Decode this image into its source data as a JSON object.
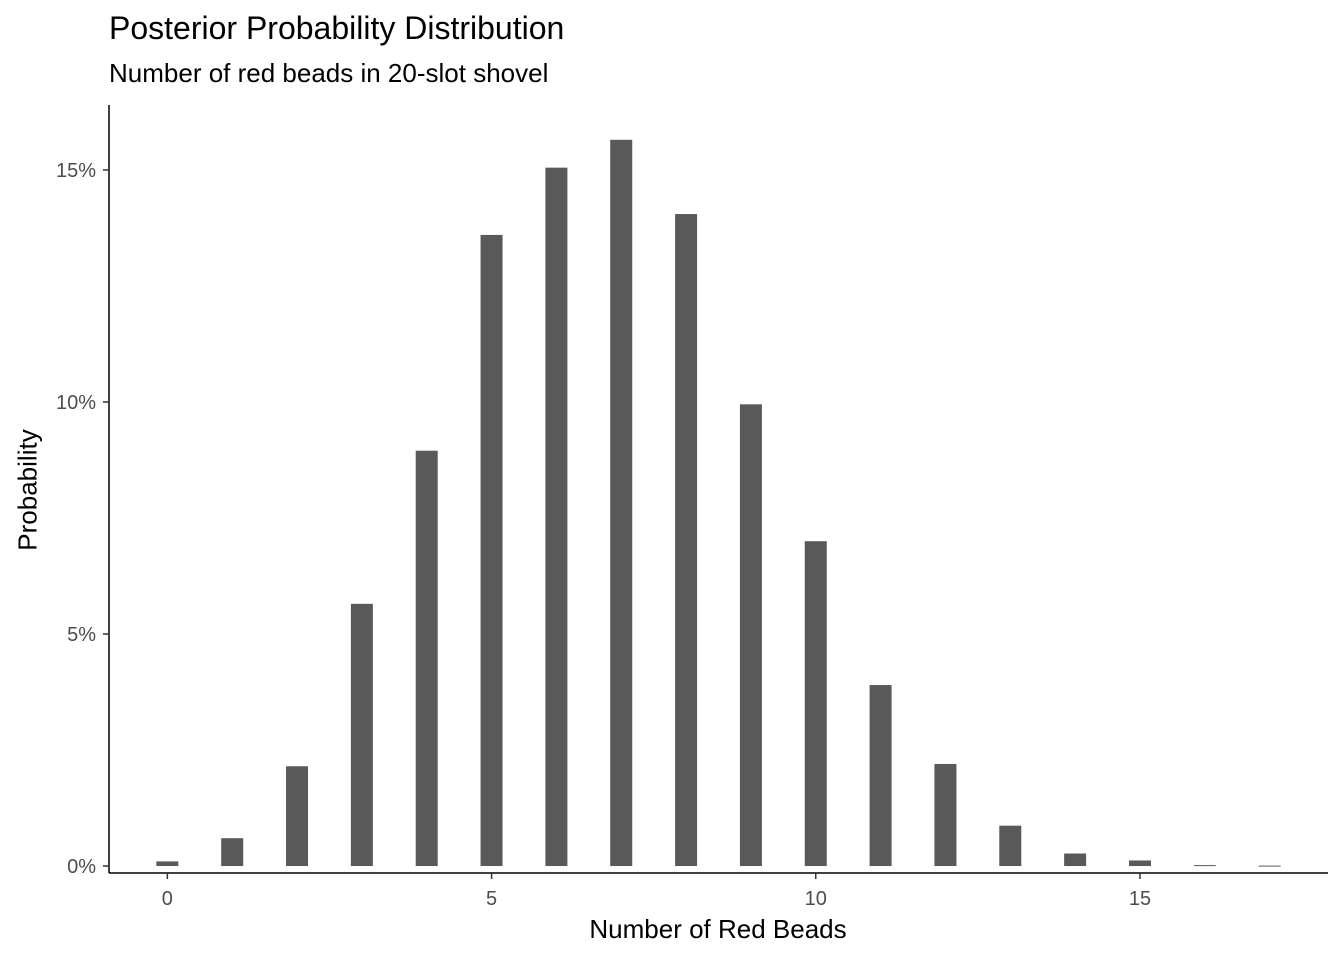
{
  "chart_data": {
    "type": "bar",
    "title": "Posterior Probability Distribution",
    "subtitle": "Number of red beads in 20-slot shovel",
    "xlabel": "Number of Red Beads",
    "ylabel": "Probability",
    "xlim": [
      -0.9,
      17.9
    ],
    "ylim": [
      -0.0015,
      0.164
    ],
    "x_ticks": [
      0,
      5,
      10,
      15
    ],
    "y_ticks": [
      0,
      0.05,
      0.1,
      0.15
    ],
    "y_tick_labels": [
      "0%",
      "5%",
      "10%",
      "15%"
    ],
    "bar_color": "#595959",
    "grid": false,
    "x": [
      0,
      1,
      2,
      3,
      4,
      5,
      6,
      7,
      8,
      9,
      10,
      11,
      12,
      13,
      14,
      15,
      16,
      17
    ],
    "values": [
      0.001,
      0.006,
      0.0215,
      0.0565,
      0.0895,
      0.136,
      0.1505,
      0.1565,
      0.1405,
      0.0995,
      0.07,
      0.039,
      0.022,
      0.0087,
      0.0027,
      0.0012,
      0.0002,
      0.0001
    ]
  }
}
